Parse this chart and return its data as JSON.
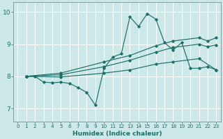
{
  "xlabel": "Humidex (Indice chaleur)",
  "xlim": [
    -0.5,
    23.5
  ],
  "ylim": [
    6.6,
    10.3
  ],
  "yticks": [
    7,
    8,
    9,
    10
  ],
  "xticks": [
    0,
    1,
    2,
    3,
    4,
    5,
    6,
    7,
    8,
    9,
    10,
    11,
    12,
    13,
    14,
    15,
    16,
    17,
    18,
    19,
    20,
    21,
    22,
    23
  ],
  "bg_color": "#cce8e8",
  "line_color": "#1e6e68",
  "grid_color": "#ffffff",
  "lines": [
    {
      "x": [
        1,
        2,
        3,
        4,
        5,
        6,
        7,
        8,
        9,
        10,
        11,
        12,
        13,
        14,
        15,
        16,
        17,
        18,
        19,
        20,
        21,
        22,
        23
      ],
      "y": [
        8.0,
        8.0,
        7.82,
        7.8,
        7.82,
        7.78,
        7.65,
        7.5,
        7.1,
        8.25,
        8.6,
        8.7,
        9.85,
        9.55,
        9.95,
        9.78,
        9.05,
        8.82,
        9.05,
        8.25,
        8.25,
        8.3,
        8.2
      ]
    },
    {
      "x": [
        1,
        5,
        10,
        13,
        16,
        18,
        21,
        22,
        23
      ],
      "y": [
        8.0,
        8.1,
        8.45,
        8.65,
        8.95,
        9.1,
        9.2,
        9.1,
        9.2
      ]
    },
    {
      "x": [
        1,
        5,
        10,
        13,
        16,
        18,
        21,
        22,
        23
      ],
      "y": [
        8.0,
        8.05,
        8.3,
        8.5,
        8.75,
        8.9,
        9.0,
        8.92,
        8.98
      ]
    },
    {
      "x": [
        1,
        5,
        10,
        13,
        16,
        18,
        21,
        23
      ],
      "y": [
        8.0,
        7.98,
        8.1,
        8.2,
        8.38,
        8.45,
        8.55,
        8.2
      ]
    }
  ]
}
